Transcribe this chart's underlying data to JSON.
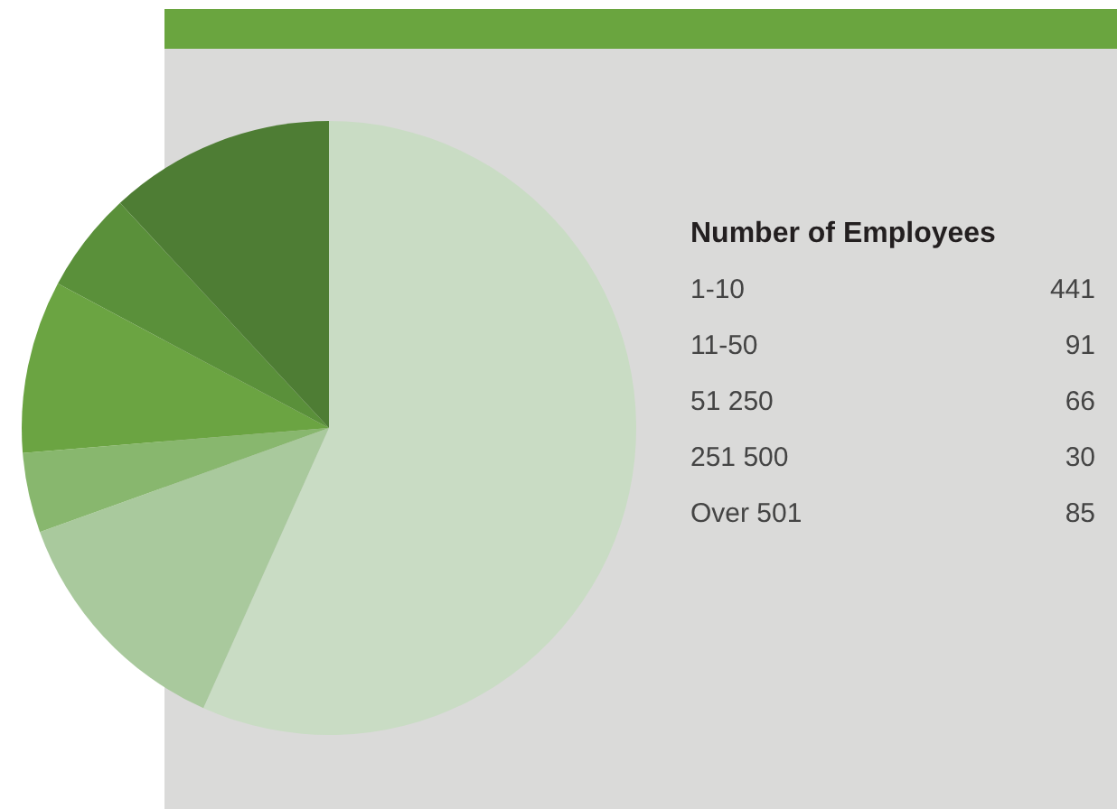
{
  "chart_data": [
    {
      "type": "pie",
      "categories": [
        null,
        null,
        null,
        null,
        null,
        null
      ],
      "values": [
        56.7,
        12.8,
        4.2,
        9.1,
        5.3,
        11.9
      ],
      "colors": [
        "#c9dcc4",
        "#a9c99d",
        "#88b76e",
        "#6ba442",
        "#5a903a",
        "#4e7d34"
      ]
    },
    {
      "type": "other",
      "title": "Number of Employees",
      "categories": [
        "1-10",
        "11-50",
        "51 250",
        "251 500",
        "Over 501"
      ],
      "values": [
        441,
        91,
        66,
        30,
        85
      ],
      "data_labels": true
    }
  ]
}
